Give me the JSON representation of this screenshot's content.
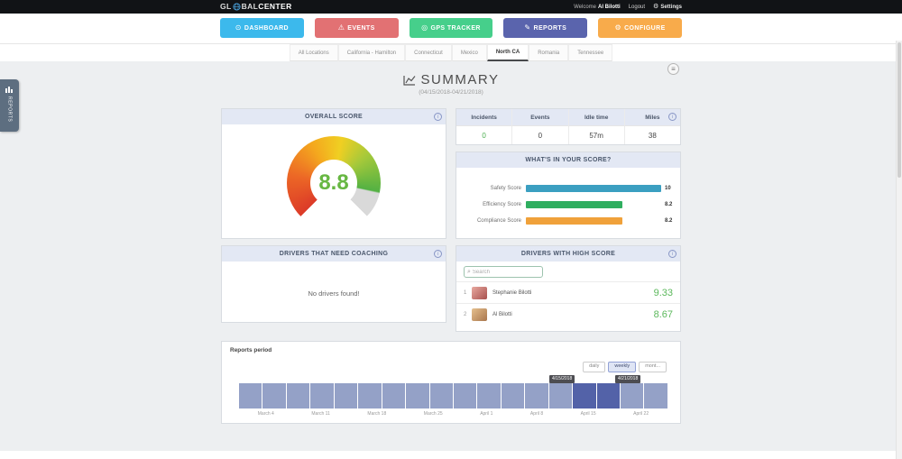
{
  "icons": {
    "info": "i",
    "gear": "⚙",
    "search": "⌕",
    "menu": "≡",
    "dashboard": "⊙",
    "events": "⚠",
    "gps": "◎",
    "reports": "✎",
    "configure": "⚙"
  },
  "topbar": {
    "logo_part1": "GL",
    "logo_part2": "BAL",
    "logo_part3": "CENTER",
    "welcome_prefix": "Welcome",
    "user_name": "Al Bilotti",
    "logout_label": "Logout",
    "settings_label": "Settings"
  },
  "nav": {
    "items": [
      {
        "label": "DASHBOARD",
        "color": "#3cb9ec"
      },
      {
        "label": "EVENTS",
        "color": "#e27173"
      },
      {
        "label": "GPS TRACKER",
        "color": "#46cf8b"
      },
      {
        "label": "REPORTS",
        "color": "#5a64ad"
      },
      {
        "label": "CONFIGURE",
        "color": "#f8ab4b"
      }
    ]
  },
  "tabs": {
    "items": [
      "All Locations",
      "California - Hamilton",
      "Connecticut",
      "Mexico",
      "North CA",
      "Romania",
      "Tennessee"
    ],
    "active": "North CA"
  },
  "sidebar_flap": {
    "label": "REPORTS"
  },
  "page": {
    "title": "SUMMARY",
    "subtitle": "(04/15/2018-04/21/2018)"
  },
  "overall_score": {
    "title": "OVERALL SCORE",
    "value": "8.8",
    "max": 10,
    "value_color": "#67b742"
  },
  "stats": {
    "columns": [
      {
        "header": "Incidents",
        "value": "0",
        "value_color": "#4caf50"
      },
      {
        "header": "Events",
        "value": "0",
        "value_color": "#444444"
      },
      {
        "header": "Idle time",
        "value": "57m",
        "value_color": "#444444"
      },
      {
        "header": "Miles",
        "value": "38",
        "value_color": "#444444"
      }
    ]
  },
  "score_breakdown": {
    "title": "WHAT'S IN YOUR SCORE?",
    "rows": [
      {
        "label": "Safety Score",
        "value": "10",
        "color": "#3b9fc1",
        "width": "100%"
      },
      {
        "label": "Efficiency Score",
        "value": "8.2",
        "color": "#2fae5f",
        "width": "71%"
      },
      {
        "label": "Compliance Score",
        "value": "8.2",
        "color": "#f0a13a",
        "width": "71%"
      }
    ]
  },
  "coaching": {
    "title": "DRIVERS THAT NEED COACHING",
    "empty_message": "No drivers found!"
  },
  "high_score": {
    "title": "DRIVERS WITH HIGH SCORE",
    "search_placeholder": "Search",
    "score_color": "#5cb85c",
    "drivers": [
      {
        "rank": "1",
        "name": "Stephanie Bilotti",
        "score": "9.33"
      },
      {
        "rank": "2",
        "name": "Al Bilotti",
        "score": "8.67"
      }
    ]
  },
  "reports_period": {
    "title": "Reports period",
    "range_buttons": [
      {
        "label": "daily"
      },
      {
        "label": "weekly"
      },
      {
        "label": "mont..."
      }
    ],
    "active_button": "weekly",
    "tooltips": [
      "4/15/2018",
      "4/21/2018"
    ],
    "axis_labels": [
      "March 4",
      "March 11",
      "March 18",
      "March 25",
      "April 1",
      "April 8",
      "April 15",
      "April 22"
    ],
    "timeline": {
      "bars": 18,
      "selected": [
        14,
        15
      ]
    }
  }
}
